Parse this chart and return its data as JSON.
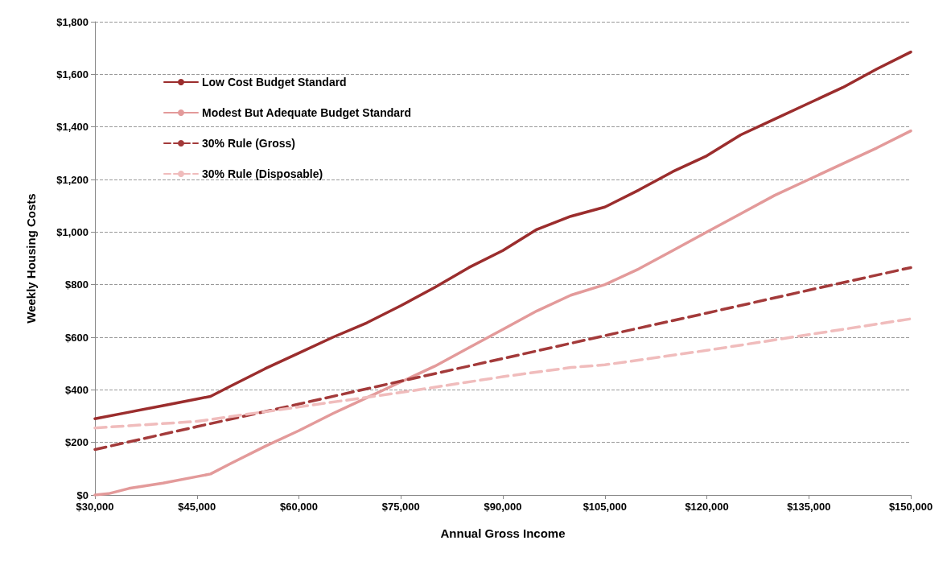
{
  "chart_data": {
    "type": "line",
    "xlabel": "Annual Gross Income",
    "ylabel": "Weekly Housing Costs",
    "xlim": [
      30000,
      150000
    ],
    "xticks": [
      {
        "value": 30000,
        "label": "$30,000"
      },
      {
        "value": 45000,
        "label": "$45,000"
      },
      {
        "value": 60000,
        "label": "$60,000"
      },
      {
        "value": 75000,
        "label": "$75,000"
      },
      {
        "value": 90000,
        "label": "$90,000"
      },
      {
        "value": 105000,
        "label": "$105,000"
      },
      {
        "value": 120000,
        "label": "$120,000"
      },
      {
        "value": 135000,
        "label": "$135,000"
      },
      {
        "value": 150000,
        "label": "$150,000"
      }
    ],
    "ylim": [
      0,
      1800
    ],
    "yticks": [
      {
        "value": 0,
        "label": "$0"
      },
      {
        "value": 200,
        "label": "$200"
      },
      {
        "value": 400,
        "label": "$400"
      },
      {
        "value": 600,
        "label": "$600"
      },
      {
        "value": 800,
        "label": "$800"
      },
      {
        "value": 1000,
        "label": "$1,000"
      },
      {
        "value": 1200,
        "label": "$1,200"
      },
      {
        "value": 1400,
        "label": "$1,400"
      },
      {
        "value": 1600,
        "label": "$1,600"
      },
      {
        "value": 1800,
        "label": "$1,800"
      }
    ],
    "grid": "y",
    "legend": "top left",
    "marker": "none",
    "series": [
      {
        "name": "Low Cost Budget Standard",
        "color": "#9b2d2d",
        "line_style": "solid",
        "x": [
          30000,
          35000,
          40000,
          45000,
          47000,
          50000,
          55000,
          60000,
          65000,
          70000,
          75000,
          80000,
          85000,
          90000,
          95000,
          100000,
          105000,
          110000,
          115000,
          120000,
          125000,
          130000,
          135000,
          140000,
          145000,
          150000
        ],
        "values": [
          290,
          315,
          340,
          365,
          375,
          415,
          480,
          540,
          600,
          655,
          720,
          790,
          865,
          930,
          1010,
          1060,
          1095,
          1160,
          1230,
          1290,
          1370,
          1430,
          1490,
          1550,
          1620,
          1685
        ]
      },
      {
        "name": "Modest But Adequate Budget Standard",
        "color": "#e39a9a",
        "line_style": "solid",
        "x": [
          30000,
          32000,
          35000,
          40000,
          45000,
          47000,
          50000,
          55000,
          60000,
          65000,
          70000,
          75000,
          80000,
          85000,
          90000,
          95000,
          100000,
          105000,
          110000,
          115000,
          120000,
          125000,
          130000,
          135000,
          140000,
          145000,
          150000
        ],
        "values": [
          0,
          5,
          25,
          45,
          70,
          80,
          120,
          185,
          245,
          310,
          370,
          430,
          490,
          560,
          630,
          700,
          760,
          800,
          860,
          930,
          1000,
          1070,
          1140,
          1200,
          1260,
          1320,
          1385
        ]
      },
      {
        "name": "30% Rule (Gross)",
        "color": "#a33a3a",
        "line_style": "dashed",
        "x": [
          30000,
          45000,
          60000,
          75000,
          90000,
          105000,
          120000,
          135000,
          150000
        ],
        "values": [
          173,
          260,
          346,
          433,
          519,
          606,
          692,
          779,
          865
        ]
      },
      {
        "name": "30% Rule (Disposable)",
        "color": "#f0bcbc",
        "line_style": "dashed",
        "x": [
          30000,
          45000,
          60000,
          75000,
          90000,
          100000,
          105000,
          120000,
          135000,
          150000
        ],
        "values": [
          255,
          280,
          335,
          390,
          450,
          485,
          495,
          550,
          610,
          670
        ]
      }
    ]
  }
}
